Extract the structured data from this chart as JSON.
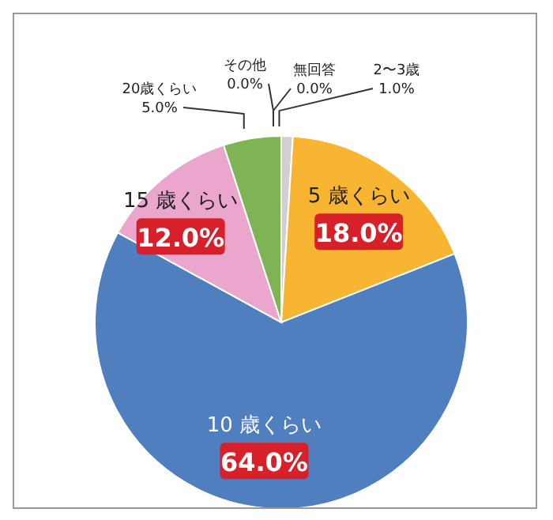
{
  "chart_data": {
    "type": "pie",
    "categories": [
      "2〜3歳",
      "5 歳くらい",
      "10 歳くらい",
      "15 歳くらい",
      "20歳くらい",
      "その他",
      "無回答"
    ],
    "values": [
      1.0,
      18.0,
      64.0,
      12.0,
      5.0,
      0.0,
      0.0
    ],
    "colors": [
      "#d0d0d0",
      "#f8b531",
      "#4f7fbf",
      "#eaa6cc",
      "#7fb454",
      "#c0c0c0",
      "#a0a0a0"
    ],
    "value_labels": [
      "1.0%",
      "18.0%",
      "64.0%",
      "12.0%",
      "5.0%",
      "0.0%",
      "0.0%"
    ],
    "legend": false
  }
}
